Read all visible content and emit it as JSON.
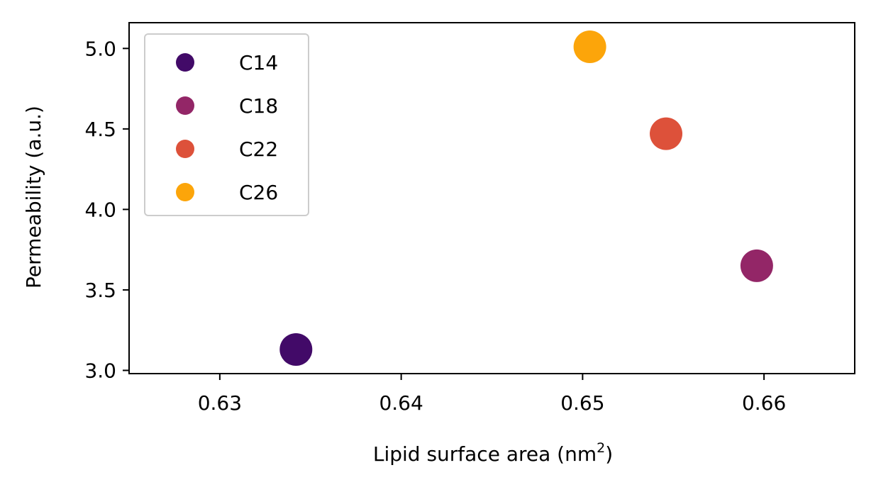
{
  "chart_data": {
    "type": "scatter",
    "title": "",
    "xlabel": "Lipid surface area (nm",
    "xlabel_superscript": "2",
    "xlabel_suffix": ")",
    "ylabel": "Permeability (a.u.)",
    "xlim": [
      0.625,
      0.665
    ],
    "ylim": [
      2.98,
      5.16
    ],
    "xticks": [
      0.63,
      0.64,
      0.65,
      0.66
    ],
    "xtick_labels": [
      "0.63",
      "0.64",
      "0.65",
      "0.66"
    ],
    "yticks": [
      3.0,
      3.5,
      4.0,
      4.5,
      5.0
    ],
    "ytick_labels": [
      "3.0",
      "3.5",
      "4.0",
      "4.5",
      "5.0"
    ],
    "grid": false,
    "legend_position": "top-left",
    "series": [
      {
        "name": "C14",
        "color": "#420a68",
        "x": [
          0.6342
        ],
        "y": [
          3.13
        ]
      },
      {
        "name": "C18",
        "color": "#932667",
        "x": [
          0.6596
        ],
        "y": [
          3.65
        ]
      },
      {
        "name": "C22",
        "color": "#dd513a",
        "x": [
          0.6546
        ],
        "y": [
          4.47
        ]
      },
      {
        "name": "C26",
        "color": "#fca50a",
        "x": [
          0.6504
        ],
        "y": [
          5.01
        ]
      }
    ]
  }
}
